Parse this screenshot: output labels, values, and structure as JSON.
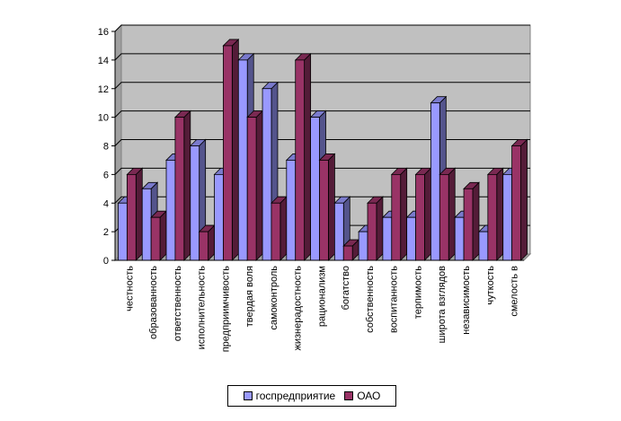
{
  "chart_data": {
    "type": "bar",
    "title": "",
    "xlabel": "",
    "ylabel": "",
    "ylim": [
      0,
      16
    ],
    "yticks": [
      0,
      2,
      4,
      6,
      8,
      10,
      12,
      14,
      16
    ],
    "grid": true,
    "legend_position": "bottom",
    "categories": [
      "честность",
      "образованность",
      "ответственность",
      "исполнительность",
      "предприимчивость",
      "твердая воля",
      "самоконтроль",
      "жизнерадостность",
      "рационализм",
      "богатство",
      "собственность",
      "воспитанность",
      "терпимость",
      "широта взглядов",
      "независимость",
      "чуткость",
      "смелость в"
    ],
    "series": [
      {
        "name": "госпредприятие",
        "color": "#9999ff",
        "values": [
          4,
          5,
          7,
          8,
          6,
          14,
          12,
          7,
          10,
          4,
          2,
          3,
          3,
          11,
          3,
          2,
          6
        ]
      },
      {
        "name": "ОАО",
        "color": "#993366",
        "values": [
          6,
          3,
          10,
          2,
          15,
          10,
          4,
          14,
          7,
          1,
          4,
          6,
          6,
          6,
          5,
          6,
          8
        ]
      }
    ],
    "plot_background": "#c0c0c0"
  }
}
